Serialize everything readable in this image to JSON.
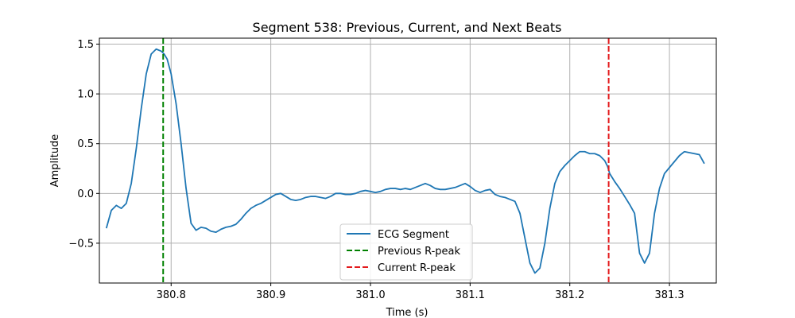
{
  "chart_data": {
    "type": "line",
    "title": "Segment 538: Previous, Current, and Next Beats",
    "xlabel": "Time (s)",
    "ylabel": "Amplitude",
    "xlim": [
      380.728,
      381.347
    ],
    "ylim": [
      -0.9,
      1.56
    ],
    "xticks": [
      380.8,
      380.9,
      381.0,
      381.1,
      381.2,
      381.3
    ],
    "xtick_labels": [
      "380.8",
      "380.9",
      "381.0",
      "381.1",
      "381.2",
      "381.3"
    ],
    "yticks": [
      -0.5,
      0.0,
      0.5,
      1.0,
      1.5
    ],
    "ytick_labels": [
      "−0.5",
      "0.0",
      "0.5",
      "1.0",
      "1.5"
    ],
    "grid": true,
    "legend_position": "bottom-center",
    "colors": {
      "ecg": "#1f77b4",
      "previous_r_peak": "#008000",
      "current_r_peak": "#e31a1c"
    },
    "series": [
      {
        "name": "ECG Segment",
        "style": "solid",
        "x": [
          380.735,
          380.74,
          380.745,
          380.75,
          380.755,
          380.76,
          380.765,
          380.77,
          380.775,
          380.78,
          380.785,
          380.79,
          380.793,
          380.796,
          380.8,
          380.805,
          380.81,
          380.815,
          380.82,
          380.825,
          380.83,
          380.835,
          380.84,
          380.845,
          380.85,
          380.855,
          380.86,
          380.865,
          380.87,
          380.875,
          380.88,
          380.885,
          380.89,
          380.895,
          380.9,
          380.905,
          380.91,
          380.915,
          380.92,
          380.925,
          380.93,
          380.935,
          380.94,
          380.945,
          380.95,
          380.955,
          380.96,
          380.965,
          380.97,
          380.975,
          380.98,
          380.985,
          380.99,
          380.995,
          381.0,
          381.005,
          381.01,
          381.015,
          381.02,
          381.025,
          381.03,
          381.035,
          381.04,
          381.045,
          381.05,
          381.055,
          381.06,
          381.065,
          381.07,
          381.075,
          381.08,
          381.085,
          381.09,
          381.095,
          381.1,
          381.105,
          381.11,
          381.115,
          381.12,
          381.125,
          381.13,
          381.135,
          381.14,
          381.145,
          381.15,
          381.155,
          381.16,
          381.165,
          381.17,
          381.175,
          381.18,
          381.185,
          381.19,
          381.195,
          381.2,
          381.205,
          381.21,
          381.215,
          381.22,
          381.225,
          381.23,
          381.235,
          381.238,
          381.24,
          381.245,
          381.25,
          381.255,
          381.26,
          381.265,
          381.27,
          381.275,
          381.28,
          381.285,
          381.29,
          381.295,
          381.3,
          381.305,
          381.31,
          381.315,
          381.32,
          381.325,
          381.33,
          381.335
        ],
        "values": [
          -0.35,
          -0.17,
          -0.12,
          -0.15,
          -0.1,
          0.1,
          0.45,
          0.85,
          1.2,
          1.4,
          1.45,
          1.43,
          1.4,
          1.35,
          1.2,
          0.9,
          0.5,
          0.05,
          -0.3,
          -0.37,
          -0.34,
          -0.35,
          -0.38,
          -0.39,
          -0.36,
          -0.34,
          -0.33,
          -0.31,
          -0.26,
          -0.2,
          -0.15,
          -0.12,
          -0.1,
          -0.07,
          -0.04,
          -0.01,
          0.0,
          -0.03,
          -0.06,
          -0.07,
          -0.06,
          -0.04,
          -0.03,
          -0.03,
          -0.04,
          -0.05,
          -0.03,
          0.0,
          0.0,
          -0.01,
          -0.01,
          0.0,
          0.02,
          0.03,
          0.02,
          0.01,
          0.02,
          0.04,
          0.05,
          0.05,
          0.04,
          0.05,
          0.04,
          0.06,
          0.08,
          0.1,
          0.08,
          0.05,
          0.04,
          0.04,
          0.05,
          0.06,
          0.08,
          0.1,
          0.07,
          0.03,
          0.01,
          0.03,
          0.04,
          -0.01,
          -0.03,
          -0.04,
          -0.06,
          -0.08,
          -0.2,
          -0.45,
          -0.7,
          -0.8,
          -0.75,
          -0.5,
          -0.15,
          0.1,
          0.22,
          0.28,
          0.33,
          0.38,
          0.42,
          0.42,
          0.4,
          0.4,
          0.38,
          0.33,
          0.27,
          0.2,
          0.12,
          0.05,
          -0.03,
          -0.11,
          -0.2,
          -0.6,
          -0.7,
          -0.6,
          -0.2,
          0.05,
          0.2,
          0.26,
          0.32,
          0.38,
          0.42,
          0.41,
          0.4,
          0.39,
          0.3
        ]
      },
      {
        "name": "Previous R-peak",
        "style": "dashed",
        "vline_x": 380.792
      },
      {
        "name": "Current R-peak",
        "style": "dashed",
        "vline_x": 381.239
      }
    ]
  }
}
